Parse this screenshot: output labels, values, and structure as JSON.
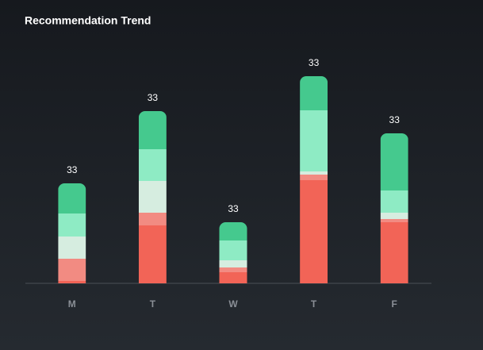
{
  "chart_data": {
    "type": "stacked_bar",
    "title": "Recommendation Trend",
    "categories": [
      "M",
      "T",
      "W",
      "T",
      "F"
    ],
    "bar_labels": [
      "33",
      "33",
      "33",
      "33",
      "33"
    ],
    "series": [
      {
        "color": "#f26457",
        "values": [
          3,
          73,
          14,
          130,
          77
        ]
      },
      {
        "color": "#f28b82",
        "values": [
          28,
          16,
          6,
          7,
          4
        ]
      },
      {
        "color": "#d6ede0",
        "values": [
          28,
          40,
          9,
          4,
          8
        ]
      },
      {
        "color": "#8eebc4",
        "values": [
          29,
          40,
          25,
          77,
          28
        ]
      },
      {
        "color": "#45c98e",
        "values": [
          38,
          48,
          23,
          43,
          72
        ]
      }
    ],
    "ylim": [
      0,
      280
    ]
  }
}
